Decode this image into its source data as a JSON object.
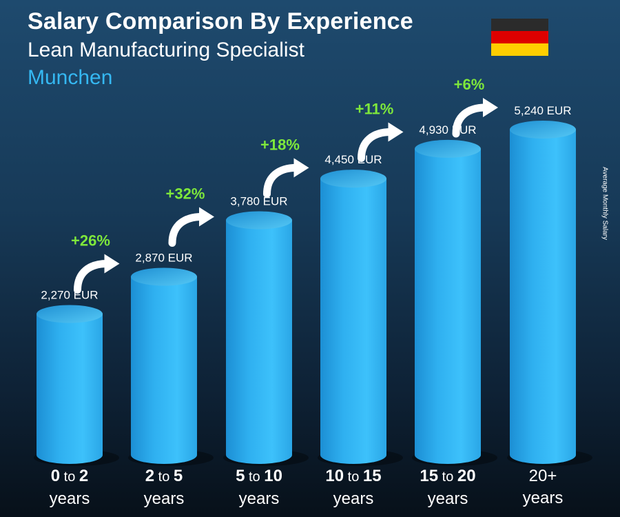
{
  "header": {
    "title": "Salary Comparison By Experience",
    "subtitle": "Lean Manufacturing Specialist",
    "city": "Munchen"
  },
  "flag": {
    "country": "Germany",
    "colors": [
      "#2b2b2b",
      "#dd0000",
      "#ffce00"
    ]
  },
  "side_label": "Average Monthly Salary",
  "chart_data": {
    "type": "bar",
    "title": "Salary Comparison By Experience",
    "ylabel": "Average Monthly Salary",
    "unit": "EUR",
    "categories": [
      "0 to 2 years",
      "2 to 5 years",
      "5 to 10 years",
      "10 to 15 years",
      "15 to 20 years",
      "20+ years"
    ],
    "category_labels": [
      {
        "from": "0",
        "to": "2",
        "unit": "years"
      },
      {
        "from": "2",
        "to": "5",
        "unit": "years"
      },
      {
        "from": "5",
        "to": "10",
        "unit": "years"
      },
      {
        "from": "10",
        "to": "15",
        "unit": "years"
      },
      {
        "from": "15",
        "to": "20",
        "unit": "years"
      },
      {
        "from": "20+",
        "to": "",
        "unit": "years"
      }
    ],
    "values": [
      2270,
      2870,
      3780,
      4450,
      4930,
      5240
    ],
    "value_labels": [
      "2,270 EUR",
      "2,870 EUR",
      "3,780 EUR",
      "4,450 EUR",
      "4,930 EUR",
      "5,240 EUR"
    ],
    "increases": [
      "+26%",
      "+32%",
      "+18%",
      "+11%",
      "+6%"
    ],
    "ylim": [
      0,
      5240
    ],
    "colors": {
      "bar": "#2fb0f0",
      "increase": "#7ee83b"
    }
  }
}
